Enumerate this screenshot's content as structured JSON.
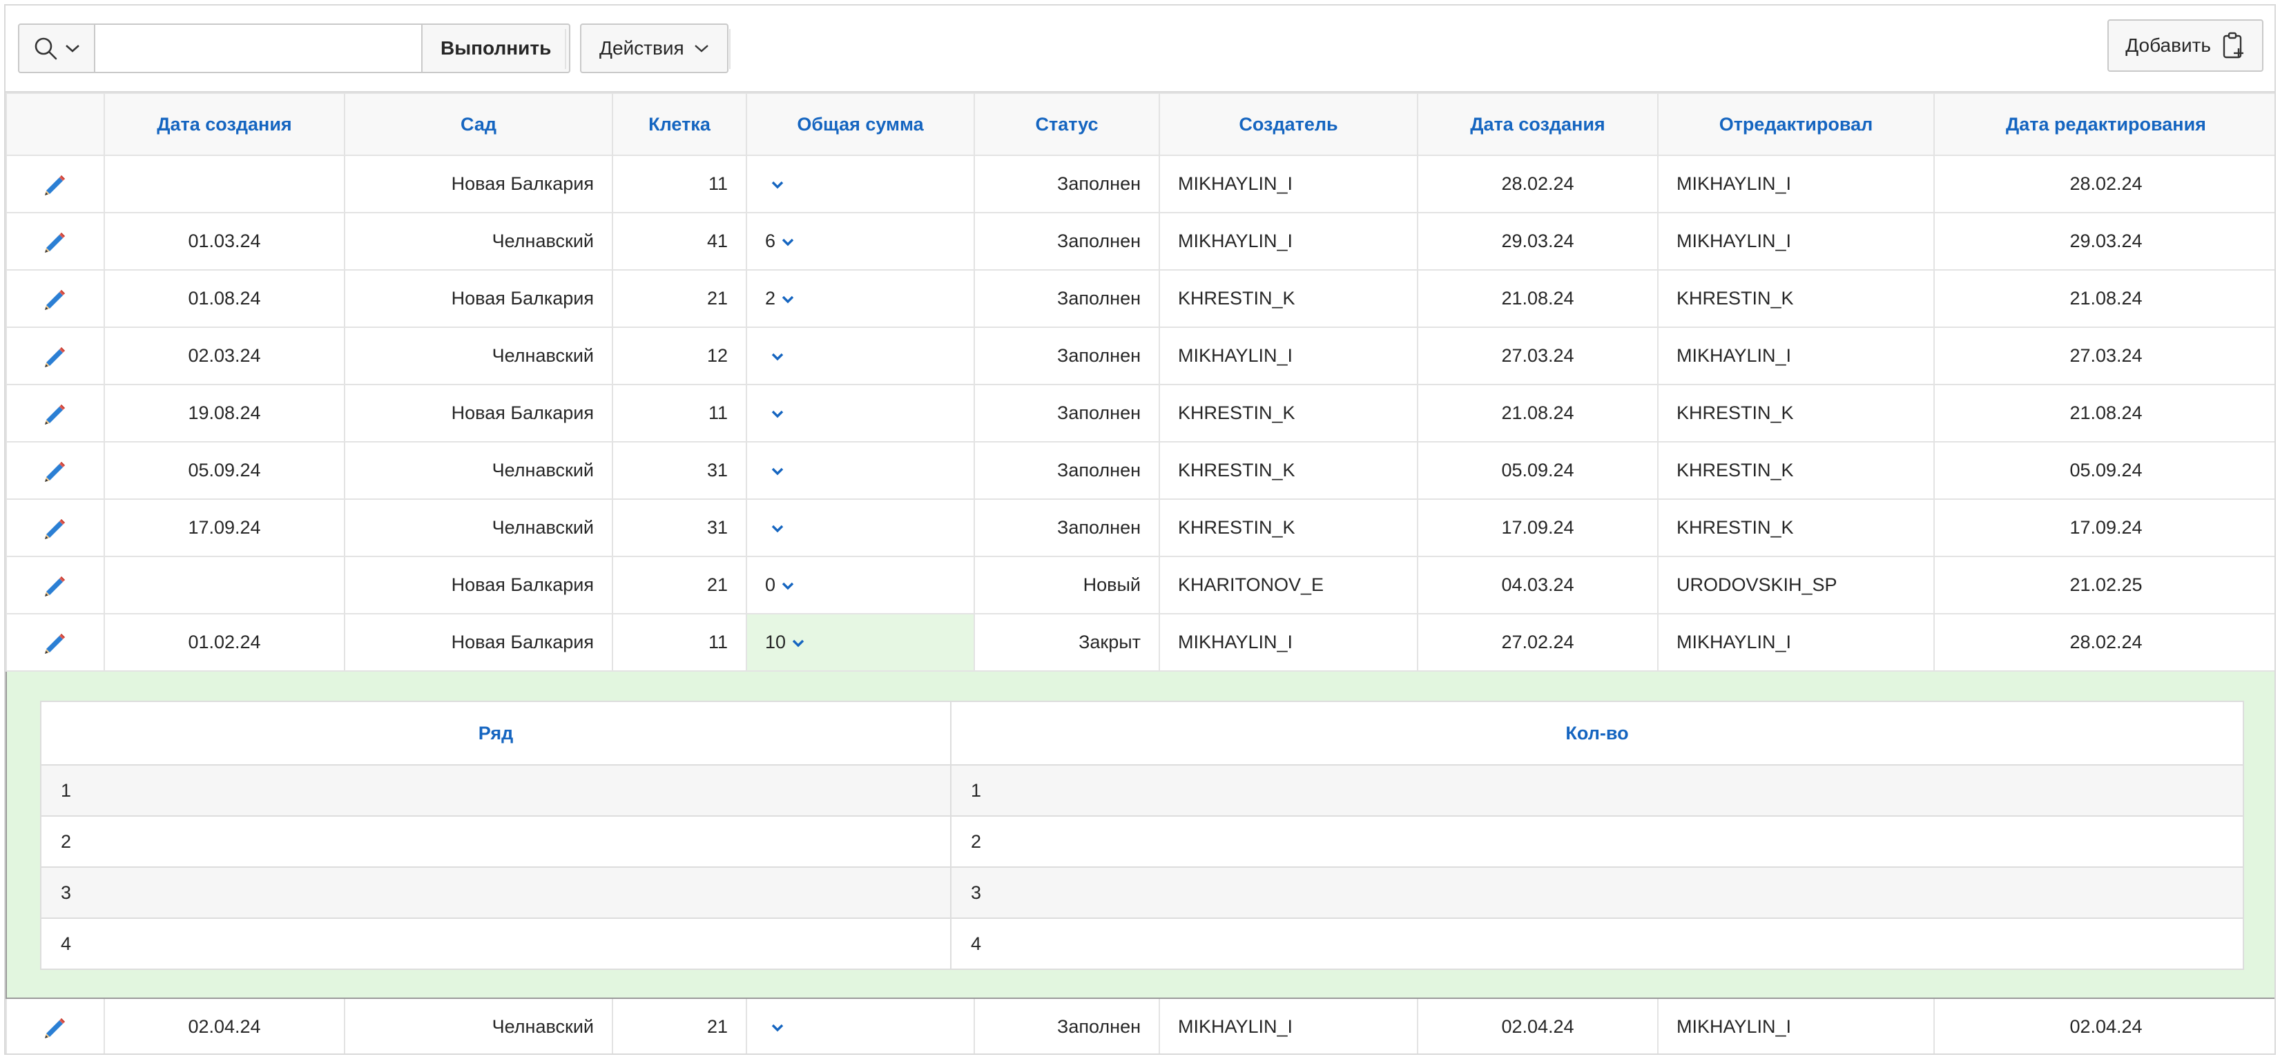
{
  "toolbar": {
    "search_placeholder": "",
    "go_label": "Выполнить",
    "actions_label": "Действия",
    "add_label": "Добавить"
  },
  "columns": [
    "Дата создания",
    "Сад",
    "Клетка",
    "Общая сумма",
    "Статус",
    "Создатель",
    "Дата создания",
    "Отредактировал",
    "Дата редактирования"
  ],
  "rows": [
    {
      "created": "",
      "garden": "Новая Балкария",
      "cell": "11",
      "total": "",
      "status": "Заполнен",
      "creator": "MIKHAYLIN_I",
      "created2": "28.02.24",
      "editor": "MIKHAYLIN_I",
      "edited": "28.02.24"
    },
    {
      "created": "01.03.24",
      "garden": "Челнавский",
      "cell": "41",
      "total": "6",
      "status": "Заполнен",
      "creator": "MIKHAYLIN_I",
      "created2": "29.03.24",
      "editor": "MIKHAYLIN_I",
      "edited": "29.03.24"
    },
    {
      "created": "01.08.24",
      "garden": "Новая Балкария",
      "cell": "21",
      "total": "2",
      "status": "Заполнен",
      "creator": "KHRESTIN_K",
      "created2": "21.08.24",
      "editor": "KHRESTIN_K",
      "edited": "21.08.24"
    },
    {
      "created": "02.03.24",
      "garden": "Челнавский",
      "cell": "12",
      "total": "",
      "status": "Заполнен",
      "creator": "MIKHAYLIN_I",
      "created2": "27.03.24",
      "editor": "MIKHAYLIN_I",
      "edited": "27.03.24"
    },
    {
      "created": "19.08.24",
      "garden": "Новая Балкария",
      "cell": "11",
      "total": "",
      "status": "Заполнен",
      "creator": "KHRESTIN_K",
      "created2": "21.08.24",
      "editor": "KHRESTIN_K",
      "edited": "21.08.24"
    },
    {
      "created": "05.09.24",
      "garden": "Челнавский",
      "cell": "31",
      "total": "",
      "status": "Заполнен",
      "creator": "KHRESTIN_K",
      "created2": "05.09.24",
      "editor": "KHRESTIN_K",
      "edited": "05.09.24"
    },
    {
      "created": "17.09.24",
      "garden": "Челнавский",
      "cell": "31",
      "total": "",
      "status": "Заполнен",
      "creator": "KHRESTIN_K",
      "created2": "17.09.24",
      "editor": "KHRESTIN_K",
      "edited": "17.09.24"
    },
    {
      "created": "",
      "garden": "Новая Балкария",
      "cell": "21",
      "total": "0",
      "status": "Новый",
      "creator": "KHARITONOV_E",
      "created2": "04.03.24",
      "editor": "URODOVSKIH_SP",
      "edited": "21.02.25"
    },
    {
      "created": "01.02.24",
      "garden": "Новая Балкария",
      "cell": "11",
      "total": "10",
      "status": "Закрыт",
      "creator": "MIKHAYLIN_I",
      "created2": "27.02.24",
      "editor": "MIKHAYLIN_I",
      "edited": "28.02.24"
    }
  ],
  "detail": {
    "columns": [
      "Ряд",
      "Кол-во"
    ],
    "rows": [
      {
        "row": "1",
        "qty": "1"
      },
      {
        "row": "2",
        "qty": "2"
      },
      {
        "row": "3",
        "qty": "3"
      },
      {
        "row": "4",
        "qty": "4"
      }
    ]
  },
  "last_row": {
    "created": "02.04.24",
    "garden": "Челнавский",
    "cell": "21",
    "total": "",
    "status": "Заполнен",
    "creator": "MIKHAYLIN_I",
    "created2": "02.04.24",
    "editor": "MIKHAYLIN_I",
    "edited": "02.04.24"
  },
  "colors": {
    "header_text": "#1565c0",
    "active_cell_bg": "#e6f7e3",
    "detail_bg": "#e2f6df"
  }
}
